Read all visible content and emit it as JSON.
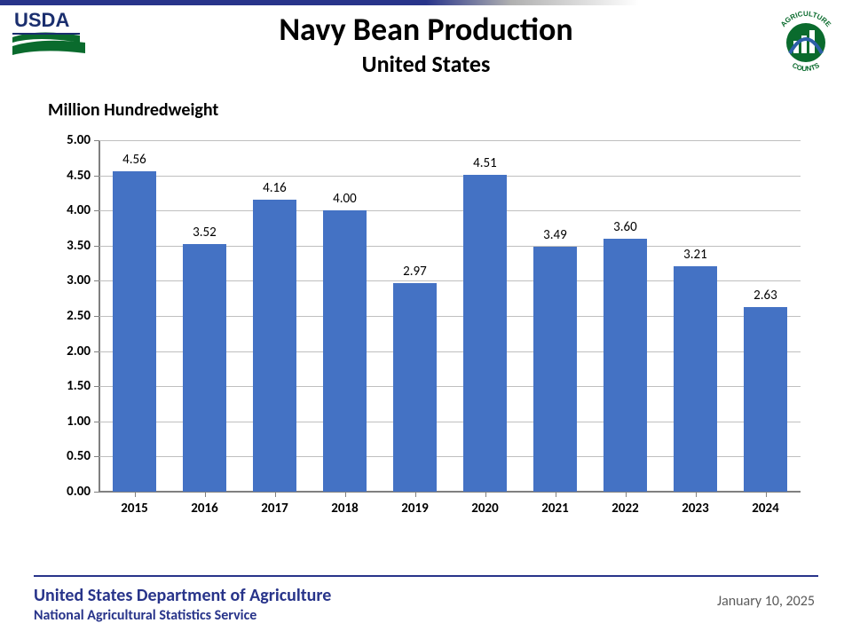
{
  "header": {
    "title": "Navy Bean Production",
    "subtitle": "United States"
  },
  "chart": {
    "type": "bar",
    "y_axis_label": "Million Hundredweight",
    "categories": [
      "2015",
      "2016",
      "2017",
      "2018",
      "2019",
      "2020",
      "2021",
      "2022",
      "2023",
      "2024"
    ],
    "values": [
      4.56,
      3.52,
      4.16,
      4.0,
      2.97,
      4.51,
      3.49,
      3.6,
      3.21,
      2.63
    ],
    "value_labels": [
      "4.56",
      "3.52",
      "4.16",
      "4.00",
      "2.97",
      "4.51",
      "3.49",
      "3.60",
      "3.21",
      "2.63"
    ],
    "bar_color": "#4472c4",
    "ylim": [
      0.0,
      5.0
    ],
    "ytick_step": 0.5,
    "ytick_labels": [
      "0.00",
      "0.50",
      "1.00",
      "1.50",
      "2.00",
      "2.50",
      "3.00",
      "3.50",
      "4.00",
      "4.50",
      "5.00"
    ],
    "grid_color": "#bfbfbf",
    "axis_color": "#808080",
    "background_color": "#ffffff",
    "tick_fontsize": 15,
    "tick_fontweight": "700",
    "value_label_fontsize": 15,
    "bar_width_ratio": 0.62
  },
  "footer": {
    "dept": "United States Department of Agriculture",
    "service": "National Agricultural Statistics Service",
    "date": "January 10, 2025",
    "line_color": "#28348a",
    "text_color": "#28348a"
  },
  "logos": {
    "usda": "USDA",
    "ag_counts_top": "AGRICULTURE",
    "ag_counts_bottom": "COUNTS"
  }
}
